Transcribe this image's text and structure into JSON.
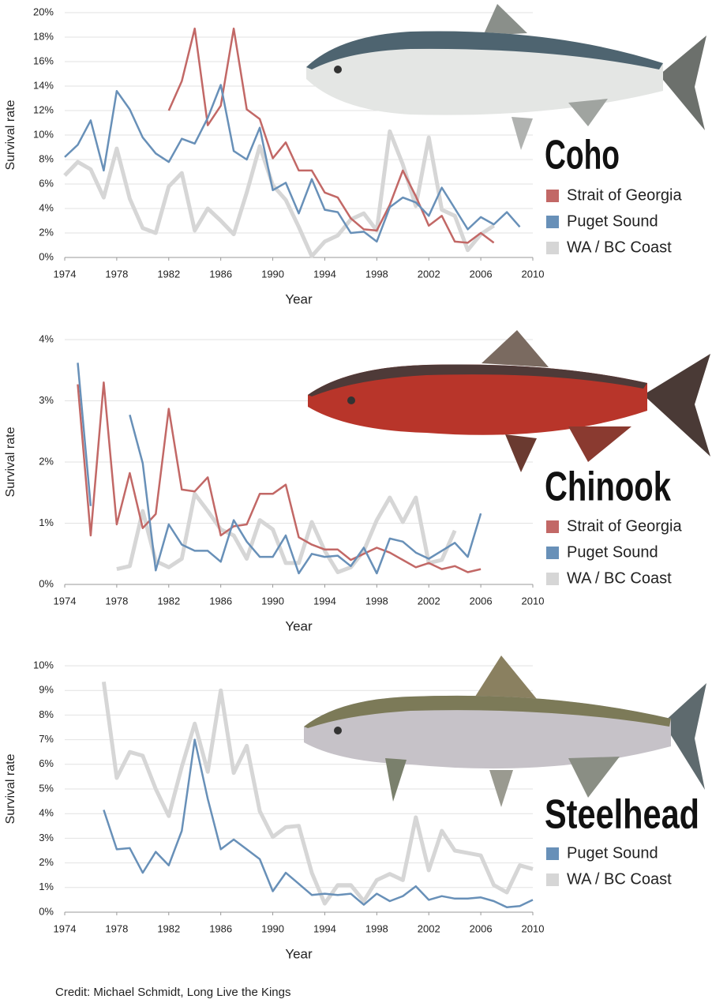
{
  "credit": "Credit: Michael Schmidt, Long Live the Kings",
  "chart_data": [
    {
      "type": "line",
      "title": "Coho",
      "x_label": "Year",
      "y_label": "Survival rate",
      "grid": true,
      "legend": "right",
      "x": [
        1974,
        1975,
        1976,
        1977,
        1978,
        1979,
        1980,
        1981,
        1982,
        1983,
        1984,
        1985,
        1986,
        1987,
        1988,
        1989,
        1990,
        1991,
        1992,
        1993,
        1994,
        1995,
        1996,
        1997,
        1998,
        1999,
        2000,
        2001,
        2002,
        2003,
        2004,
        2005,
        2006,
        2007,
        2008,
        2009
      ],
      "xlim": [
        1974,
        2010
      ],
      "xticks": [
        1974,
        1978,
        1982,
        1986,
        1990,
        1994,
        1998,
        2002,
        2006,
        2010
      ],
      "ylim": [
        0,
        20
      ],
      "yticks": [
        {
          "value": 0,
          "label": "0%"
        },
        {
          "value": 2,
          "label": "2%"
        },
        {
          "value": 4,
          "label": "4%"
        },
        {
          "value": 6,
          "label": "6%"
        },
        {
          "value": 8,
          "label": "8%"
        },
        {
          "value": 10,
          "label": "10%"
        },
        {
          "value": 12,
          "label": "12%"
        },
        {
          "value": 14,
          "label": "14%"
        },
        {
          "value": 16,
          "label": "16%"
        },
        {
          "value": 18,
          "label": "18%"
        },
        {
          "value": 20,
          "label": "20%"
        }
      ],
      "series": [
        {
          "name": "Strait of Georgia",
          "color": "#c26866",
          "values": [
            null,
            null,
            null,
            null,
            null,
            null,
            null,
            null,
            12,
            14.4,
            18.7,
            10.8,
            12.4,
            18.7,
            12.1,
            11.3,
            8.1,
            9.4,
            7.1,
            7.1,
            5.3,
            4.9,
            3.2,
            2.3,
            2.2,
            4.3,
            7.1,
            5.0,
            2.6,
            3.4,
            1.3,
            1.2,
            2.0,
            1.2,
            null,
            null
          ]
        },
        {
          "name": "Puget Sound",
          "color": "#6890b8",
          "values": [
            8.2,
            9.2,
            11.2,
            7.1,
            13.6,
            12.1,
            9.8,
            8.5,
            7.8,
            9.7,
            9.3,
            11.4,
            14.1,
            8.7,
            8.0,
            10.6,
            5.5,
            6.1,
            3.6,
            6.4,
            3.9,
            3.7,
            2.0,
            2.1,
            1.3,
            4.1,
            4.9,
            4.5,
            3.4,
            5.7,
            4.0,
            2.3,
            3.3,
            2.7,
            3.7,
            2.5
          ]
        },
        {
          "name": "WA / BC Coast",
          "color": "#d6d6d6",
          "values": [
            6.7,
            7.8,
            7.2,
            4.9,
            8.9,
            4.8,
            2.4,
            2.0,
            5.8,
            6.9,
            2.2,
            4.0,
            3.0,
            1.9,
            5.3,
            9.1,
            5.9,
            4.7,
            2.5,
            0.1,
            1.3,
            1.8,
            3.1,
            3.6,
            2.2,
            10.3,
            7.6,
            4.2,
            9.8,
            3.9,
            3.4,
            0.6,
            1.9,
            2.6,
            null,
            null
          ]
        }
      ]
    },
    {
      "type": "line",
      "title": "Chinook",
      "x_label": "Year",
      "y_label": "Survival rate",
      "grid": true,
      "legend": "right",
      "x": [
        1975,
        1976,
        1977,
        1978,
        1979,
        1980,
        1981,
        1982,
        1983,
        1984,
        1985,
        1986,
        1987,
        1988,
        1989,
        1990,
        1991,
        1992,
        1993,
        1994,
        1995,
        1996,
        1997,
        1998,
        1999,
        2000,
        2001,
        2002,
        2003,
        2004,
        2005,
        2006
      ],
      "xlim": [
        1974,
        2010
      ],
      "xticks": [
        1974,
        1978,
        1982,
        1986,
        1990,
        1994,
        1998,
        2002,
        2006,
        2010
      ],
      "ylim": [
        0,
        4
      ],
      "yticks": [
        {
          "value": 0,
          "label": "0%"
        },
        {
          "value": 1,
          "label": "1%"
        },
        {
          "value": 2,
          "label": "2%"
        },
        {
          "value": 3,
          "label": "3%"
        },
        {
          "value": 4,
          "label": "4%"
        }
      ],
      "series": [
        {
          "name": "Strait of Georgia",
          "color": "#c26866",
          "values": [
            3.27,
            0.8,
            3.3,
            0.98,
            1.82,
            0.92,
            1.15,
            2.87,
            1.55,
            1.52,
            1.75,
            0.8,
            0.95,
            0.98,
            1.48,
            1.48,
            1.63,
            0.77,
            0.65,
            0.57,
            0.57,
            0.4,
            0.5,
            0.6,
            0.52,
            0.4,
            0.28,
            0.35,
            0.25,
            0.3,
            0.2,
            0.25
          ]
        },
        {
          "name": "Puget Sound",
          "color": "#6890b8",
          "values": [
            3.62,
            1.28,
            null,
            null,
            2.77,
            1.98,
            0.23,
            0.98,
            0.65,
            0.55,
            0.55,
            0.37,
            1.05,
            0.7,
            0.45,
            0.45,
            0.8,
            0.18,
            0.5,
            0.45,
            0.47,
            0.3,
            0.6,
            0.18,
            0.75,
            0.7,
            0.52,
            0.42,
            0.55,
            0.68,
            0.45,
            1.16
          ]
        },
        {
          "name": "WA / BC Coast",
          "color": "#d6d6d6",
          "values": [
            null,
            null,
            null,
            0.25,
            0.3,
            1.2,
            0.38,
            0.28,
            0.42,
            1.48,
            1.2,
            0.9,
            0.8,
            0.42,
            1.05,
            0.9,
            0.35,
            0.35,
            1.02,
            0.55,
            0.2,
            0.28,
            0.55,
            1.05,
            1.42,
            1.02,
            1.42,
            0.35,
            0.4,
            0.88,
            null,
            null
          ]
        }
      ]
    },
    {
      "type": "line",
      "title": "Steelhead",
      "x_label": "Year",
      "y_label": "Survival rate",
      "grid": true,
      "legend": "right",
      "x": [
        1977,
        1978,
        1979,
        1980,
        1981,
        1982,
        1983,
        1984,
        1985,
        1986,
        1987,
        1988,
        1989,
        1990,
        1991,
        1992,
        1993,
        1994,
        1995,
        1996,
        1997,
        1998,
        1999,
        2000,
        2001,
        2002,
        2003,
        2004,
        2005,
        2006,
        2007,
        2008,
        2009,
        2010
      ],
      "xlim": [
        1974,
        2010
      ],
      "xticks": [
        1974,
        1978,
        1982,
        1986,
        1990,
        1994,
        1998,
        2002,
        2006,
        2010
      ],
      "ylim": [
        0,
        10
      ],
      "yticks": [
        {
          "value": 0,
          "label": "0%"
        },
        {
          "value": 1,
          "label": "1%"
        },
        {
          "value": 2,
          "label": "2%"
        },
        {
          "value": 3,
          "label": "3%"
        },
        {
          "value": 4,
          "label": "4%"
        },
        {
          "value": 5,
          "label": "5%"
        },
        {
          "value": 6,
          "label": "6%"
        },
        {
          "value": 7,
          "label": "7%"
        },
        {
          "value": 8,
          "label": "8%"
        },
        {
          "value": 9,
          "label": "9%"
        },
        {
          "value": 10,
          "label": "10%"
        }
      ],
      "series": [
        {
          "name": "Puget Sound",
          "color": "#6890b8",
          "values": [
            4.15,
            2.55,
            2.6,
            1.6,
            2.45,
            1.9,
            3.3,
            7.0,
            4.6,
            2.55,
            2.95,
            2.55,
            2.15,
            0.85,
            1.6,
            1.15,
            0.7,
            0.75,
            0.7,
            0.75,
            0.3,
            0.75,
            0.45,
            0.65,
            1.05,
            0.5,
            0.65,
            0.55,
            0.55,
            0.6,
            0.45,
            0.2,
            0.25,
            0.5
          ]
        },
        {
          "name": "WA / BC Coast",
          "color": "#d6d6d6",
          "values": [
            9.35,
            5.45,
            6.5,
            6.35,
            5.0,
            3.9,
            5.9,
            7.65,
            5.7,
            9.0,
            5.65,
            6.75,
            4.1,
            3.05,
            3.45,
            3.5,
            1.6,
            0.35,
            1.1,
            1.1,
            0.45,
            1.3,
            1.55,
            1.3,
            3.85,
            1.7,
            3.3,
            2.5,
            2.4,
            2.3,
            1.1,
            0.8,
            1.9,
            1.75
          ]
        }
      ]
    }
  ]
}
